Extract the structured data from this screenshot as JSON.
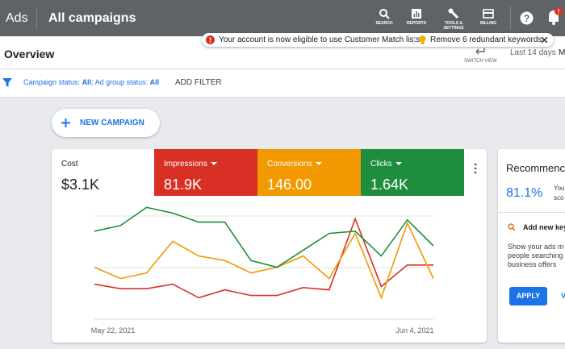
{
  "header": {
    "product": "Ads",
    "title": "All campaigns",
    "nav": [
      "SEARCH",
      "REPORTS",
      "TOOLS &",
      "SETTINGS",
      "BILLING"
    ]
  },
  "notifications": [
    "Your account is now eligible to use Customer Match lists",
    "Remove 6 redundant keywords"
  ],
  "toolbar": {
    "title": "Overview",
    "switch_view": "SWITCH VIEW",
    "date_range": "Last 14 days",
    "date_cut": "M"
  },
  "filter": {
    "label1": "Campaign status:",
    "value1": "All",
    "sep": ";",
    "label2": "Ad group status:",
    "value2": "All",
    "add": "ADD FILTER"
  },
  "new_campaign": "NEW CAMPAIGN",
  "cost": {
    "label": "Cost",
    "value": "$3.1K"
  },
  "chart_data": {
    "type": "line",
    "categories": [
      "May 22, 2021",
      null,
      null,
      null,
      null,
      null,
      null,
      null,
      null,
      null,
      null,
      null,
      null,
      "Jun 4, 2021"
    ],
    "ylim": [
      0,
      100
    ],
    "series": [
      {
        "name": "Impressions",
        "total": "81.9K",
        "color": "#d93025",
        "values": [
          31,
          27,
          27,
          31,
          19,
          26,
          21,
          21,
          28,
          26,
          89,
          29,
          48,
          48
        ]
      },
      {
        "name": "Conversions",
        "total": "146.00",
        "color": "#f29900",
        "values": [
          46,
          36,
          41,
          69,
          56,
          52,
          41,
          46,
          56,
          36,
          76,
          19,
          85,
          36
        ]
      },
      {
        "name": "Clicks",
        "total": "1.64K",
        "color": "#1e8e3e",
        "values": [
          78,
          83,
          99,
          94,
          86,
          86,
          52,
          46,
          61,
          76,
          78,
          56,
          88,
          65
        ]
      }
    ]
  },
  "recommendations": {
    "title": "Recommenc",
    "score": "81.1%",
    "score_text": [
      "Your",
      "sco"
    ],
    "item": "Add new key",
    "body": [
      "Show your ads m",
      "people searching",
      "business offers"
    ],
    "apply": "APPLY",
    "view": "V"
  }
}
